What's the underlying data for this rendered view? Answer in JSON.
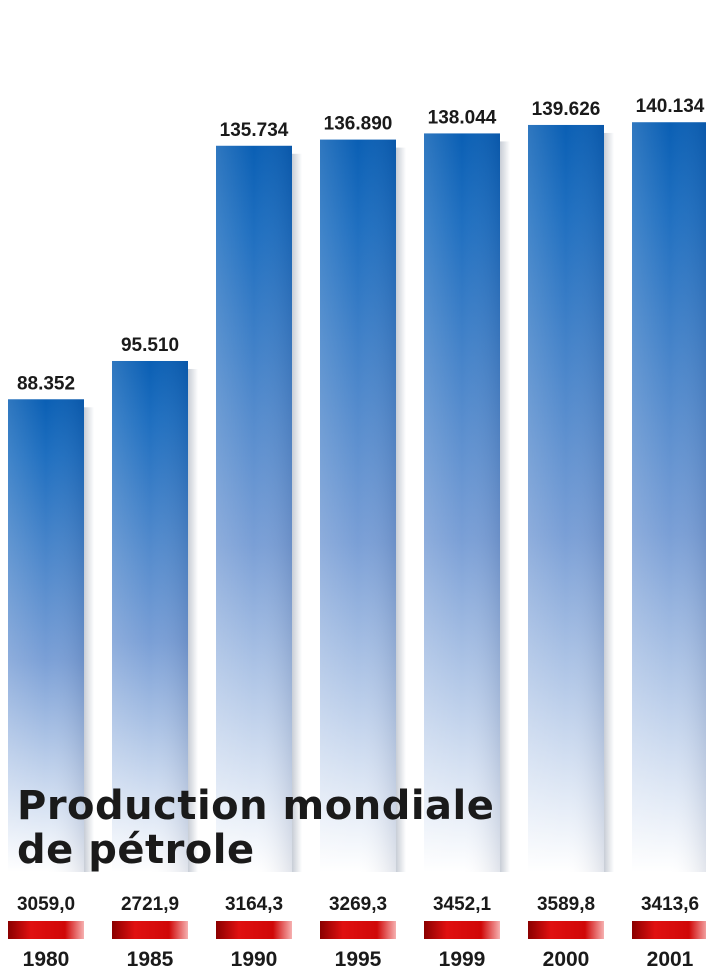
{
  "chart_data": {
    "type": "bar",
    "title": "Production mondiale de pétrole",
    "title_lines": [
      "Production mondiale",
      "de pétrole"
    ],
    "categories": [
      "1980",
      "1985",
      "1990",
      "1995",
      "1999",
      "2000",
      "2001"
    ],
    "series": [
      {
        "values": [
          88.352,
          95.51,
          135.734,
          136.89,
          138.044,
          139.626,
          140.134
        ],
        "labels": [
          "88.352",
          "95.510",
          "135.734",
          "136.890",
          "138.044",
          "139.626",
          "140.134"
        ]
      },
      {
        "values": [
          3059.0,
          2721.9,
          3164.3,
          3269.3,
          3452.1,
          3589.8,
          3413.6
        ],
        "labels": [
          "3059,0",
          "2721,9",
          "3164,3",
          "3269,3",
          "3452,1",
          "3589,8",
          "3413,6"
        ]
      }
    ],
    "ylim": [
      0,
      157
    ],
    "grid": false,
    "legend": "none"
  },
  "colors": {
    "bar_top": "#0a5fb4",
    "bar_bottom": "#ffffff",
    "marker_red": "#d80e0e",
    "text": "#1a1a1a"
  }
}
